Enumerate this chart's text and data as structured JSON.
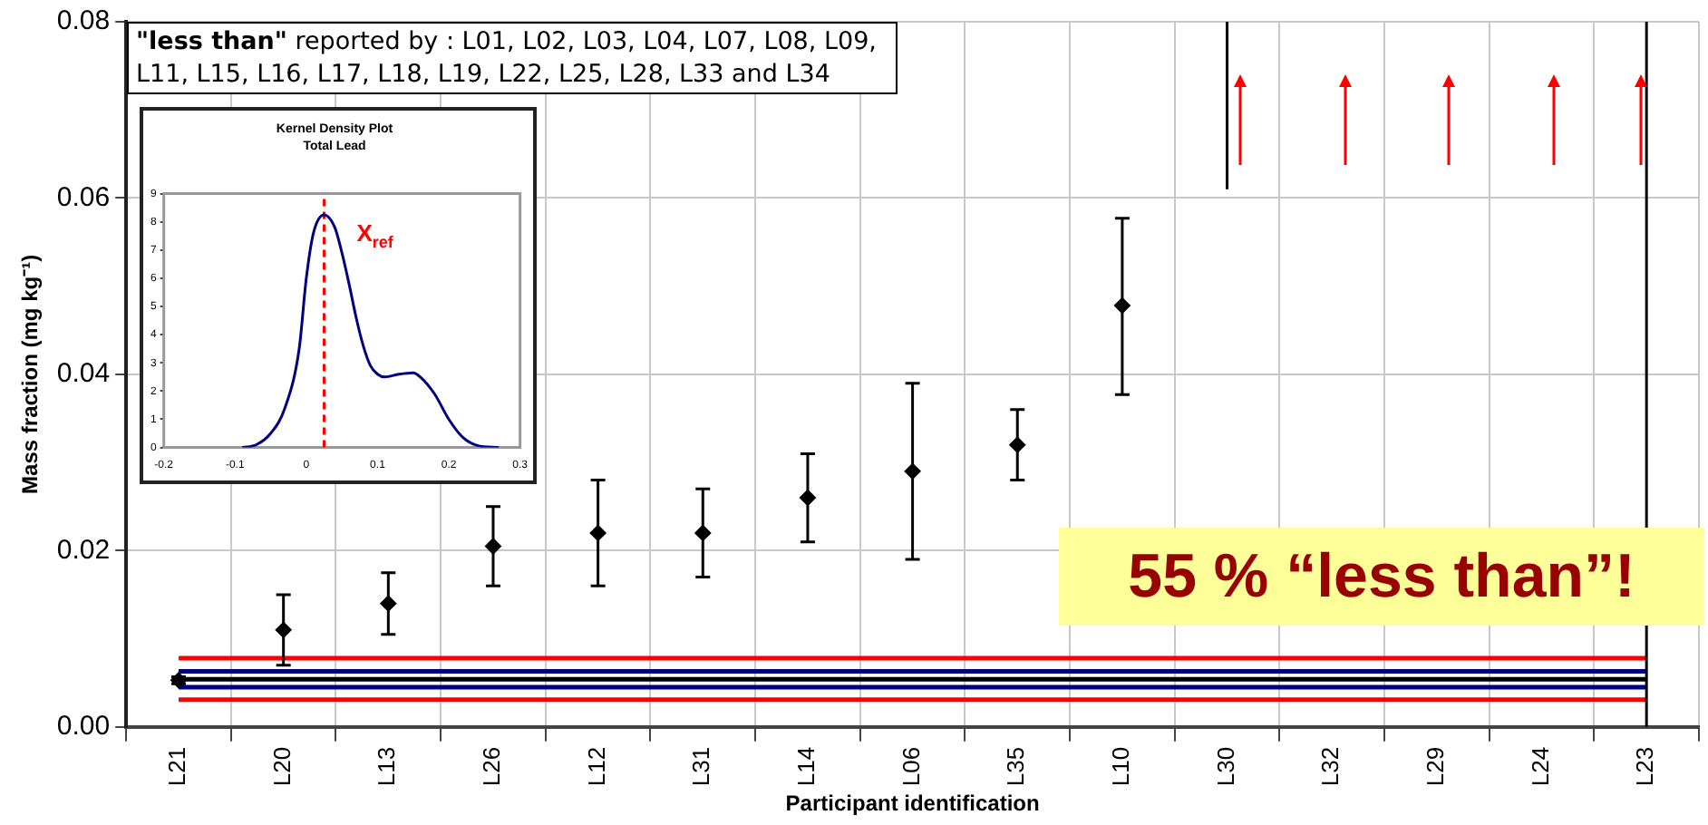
{
  "chart_data": [
    {
      "type": "scatter",
      "xlabel": "Participant identification",
      "ylabel": "Mass fraction (mg kg⁻¹)",
      "categories": [
        "L21",
        "L20",
        "L13",
        "L26",
        "L12",
        "L31",
        "L14",
        "L06",
        "L35",
        "L10",
        "L30",
        "L32",
        "L29",
        "L24",
        "L23"
      ],
      "series": [
        {
          "color": "#000000",
          "marker": "diamond",
          "values": [
            0.0053,
            0.011,
            0.014,
            0.0205,
            0.022,
            0.022,
            0.026,
            0.029,
            0.032,
            0.0478,
            null,
            null,
            null,
            null,
            null
          ],
          "errors": [
            [
              0.0049,
              0.0057
            ],
            [
              0.007,
              0.015
            ],
            [
              0.0105,
              0.0175
            ],
            [
              0.016,
              0.025
            ],
            [
              0.016,
              0.028
            ],
            [
              0.017,
              0.027
            ],
            [
              0.021,
              0.031
            ],
            [
              0.019,
              0.039
            ],
            [
              0.028,
              0.036
            ],
            [
              0.0377,
              0.0577
            ],
            null,
            null,
            null,
            null,
            null
          ]
        },
        {
          "type": "line",
          "color": "#000000",
          "x": [
            "L30",
            "L30"
          ],
          "values": [
            0.061,
            0.08
          ]
        },
        {
          "type": "line",
          "color": "#000000",
          "x": [
            "L23",
            "L23"
          ],
          "values": [
            0,
            0.08
          ]
        }
      ],
      "ylim": [
        0,
        0.08
      ],
      "yticks": [
        {
          "value": 0,
          "label": "0.00"
        },
        {
          "value": 0.02,
          "label": "0.02"
        },
        {
          "value": 0.04,
          "label": "0.04"
        },
        {
          "value": 0.06,
          "label": "0.06"
        },
        {
          "value": 0.08,
          "label": "0.08"
        }
      ],
      "grid": true,
      "legend": false,
      "ref_lines": [
        {
          "axis": "y",
          "value": 0.0078,
          "color": "#ff0000"
        },
        {
          "axis": "y",
          "value": 0.0063,
          "color": "#000080"
        },
        {
          "axis": "y",
          "value": 0.0054,
          "color": "#000000"
        },
        {
          "axis": "y",
          "value": 0.0045,
          "color": "#000080"
        },
        {
          "axis": "y",
          "value": 0.0031,
          "color": "#ff0000"
        }
      ],
      "annotations": [
        "\"less than\" reported by : L01, L02, L03, L04, L07, L08, L09, L11, L15, L16, L17, L18, L19, L22, L25, L28, L33 and L34",
        "55 % “less than”!"
      ]
    },
    {
      "type": "line",
      "title": "Kernel Density Plot",
      "subtitle": "Total Lead",
      "grid": false,
      "legend": false,
      "series": [
        {
          "color": "#000080",
          "x": [
            -0.09,
            -0.07,
            -0.05,
            -0.03,
            -0.01,
            0,
            0.01,
            0.025,
            0.04,
            0.05,
            0.06,
            0.07,
            0.08,
            0.09,
            0.1,
            0.11,
            0.13,
            0.15,
            0.16,
            0.18,
            0.2,
            0.22,
            0.24,
            0.27
          ],
          "values": [
            0,
            0.1,
            0.5,
            1.4,
            3.5,
            6.0,
            7.6,
            8.25,
            7.8,
            6.9,
            5.8,
            4.6,
            3.6,
            2.9,
            2.6,
            2.5,
            2.6,
            2.65,
            2.5,
            1.9,
            1.0,
            0.35,
            0.07,
            0
          ]
        }
      ],
      "xlim": [
        -0.2,
        0.3
      ],
      "xticks": [
        -0.2,
        -0.1,
        0,
        0.1,
        0.2,
        0.3
      ],
      "ylim": [
        0,
        9
      ],
      "yticks": [
        0,
        1,
        2,
        3,
        4,
        5,
        6,
        7,
        8,
        9
      ],
      "ref_lines": [
        {
          "axis": "x",
          "value": 0.025,
          "color": "#ff0000",
          "line_style": "dashed",
          "label": "X$_{ref}$"
        }
      ]
    }
  ]
}
